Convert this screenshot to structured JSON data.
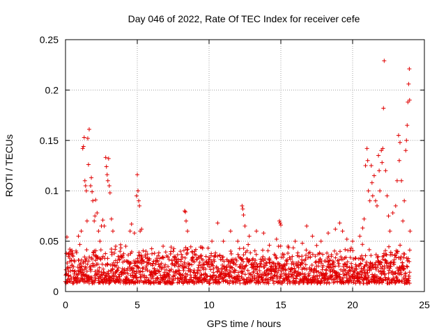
{
  "chart_data": {
    "type": "scatter",
    "title": "Day 046 of 2022, Rate Of TEC Index for receiver cefe",
    "xlabel": "GPS time / hours",
    "ylabel": "ROTI / TECUs",
    "xlim": [
      0,
      25
    ],
    "ylim": [
      0,
      0.25
    ],
    "xticks": [
      0,
      5,
      10,
      15,
      20,
      25
    ],
    "xtick_labels": [
      "0",
      "5",
      "10",
      "15",
      "20",
      "25"
    ],
    "yticks": [
      0,
      0.05,
      0.1,
      0.15,
      0.2,
      0.25
    ],
    "ytick_labels": [
      "0",
      "0.05",
      "0.1",
      "0.15",
      "0.2",
      "0.25"
    ],
    "grid": true,
    "marker": "+",
    "series_color": "#e00000",
    "series": [
      {
        "name": "ROTI",
        "points": [
          [
            0.1,
            0.054
          ],
          [
            0.2,
            0.035
          ],
          [
            0.3,
            0.042
          ],
          [
            0.5,
            0.038
          ],
          [
            0.6,
            0.031
          ],
          [
            0.9,
            0.055
          ],
          [
            1.1,
            0.06
          ],
          [
            1.2,
            0.142
          ],
          [
            1.25,
            0.144
          ],
          [
            1.3,
            0.153
          ],
          [
            1.35,
            0.11
          ],
          [
            1.4,
            0.105
          ],
          [
            1.45,
            0.1
          ],
          [
            1.5,
            0.07
          ],
          [
            1.55,
            0.152
          ],
          [
            1.6,
            0.126
          ],
          [
            1.65,
            0.161
          ],
          [
            1.75,
            0.105
          ],
          [
            1.8,
            0.113
          ],
          [
            1.85,
            0.099
          ],
          [
            1.9,
            0.09
          ],
          [
            2.0,
            0.07
          ],
          [
            2.05,
            0.075
          ],
          [
            2.1,
            0.091
          ],
          [
            2.2,
            0.078
          ],
          [
            2.3,
            0.06
          ],
          [
            2.4,
            0.05
          ],
          [
            2.5,
            0.065
          ],
          [
            2.6,
            0.071
          ],
          [
            2.7,
            0.065
          ],
          [
            2.8,
            0.133
          ],
          [
            2.85,
            0.124
          ],
          [
            2.9,
            0.116
          ],
          [
            2.95,
            0.11
          ],
          [
            3.0,
            0.132
          ],
          [
            3.05,
            0.105
          ],
          [
            3.1,
            0.098
          ],
          [
            3.2,
            0.072
          ],
          [
            3.3,
            0.06
          ],
          [
            3.5,
            0.045
          ],
          [
            3.8,
            0.04
          ],
          [
            4.2,
            0.045
          ],
          [
            4.5,
            0.06
          ],
          [
            4.6,
            0.067
          ],
          [
            4.8,
            0.058
          ],
          [
            4.95,
            0.095
          ],
          [
            5.0,
            0.116
          ],
          [
            5.05,
            0.1
          ],
          [
            5.1,
            0.09
          ],
          [
            5.15,
            0.085
          ],
          [
            5.2,
            0.06
          ],
          [
            5.3,
            0.062
          ],
          [
            5.6,
            0.04
          ],
          [
            6.2,
            0.038
          ],
          [
            6.8,
            0.045
          ],
          [
            7.5,
            0.04
          ],
          [
            8.0,
            0.04
          ],
          [
            8.3,
            0.08
          ],
          [
            8.35,
            0.079
          ],
          [
            8.4,
            0.07
          ],
          [
            8.5,
            0.06
          ],
          [
            9.0,
            0.04
          ],
          [
            9.5,
            0.044
          ],
          [
            10.2,
            0.05
          ],
          [
            10.6,
            0.068
          ],
          [
            11.0,
            0.05
          ],
          [
            11.5,
            0.06
          ],
          [
            12.0,
            0.05
          ],
          [
            12.3,
            0.085
          ],
          [
            12.35,
            0.082
          ],
          [
            12.4,
            0.076
          ],
          [
            12.5,
            0.065
          ],
          [
            12.8,
            0.055
          ],
          [
            13.3,
            0.06
          ],
          [
            13.8,
            0.058
          ],
          [
            14.2,
            0.046
          ],
          [
            14.7,
            0.052
          ],
          [
            14.9,
            0.07
          ],
          [
            14.95,
            0.068
          ],
          [
            15.0,
            0.066
          ],
          [
            15.5,
            0.045
          ],
          [
            16.0,
            0.05
          ],
          [
            16.5,
            0.048
          ],
          [
            16.8,
            0.065
          ],
          [
            17.2,
            0.055
          ],
          [
            17.8,
            0.05
          ],
          [
            18.3,
            0.058
          ],
          [
            18.8,
            0.062
          ],
          [
            19.1,
            0.068
          ],
          [
            19.3,
            0.06
          ],
          [
            19.6,
            0.052
          ],
          [
            20.0,
            0.05
          ],
          [
            20.5,
            0.055
          ],
          [
            20.7,
            0.063
          ],
          [
            20.8,
            0.072
          ],
          [
            20.9,
            0.125
          ],
          [
            21.0,
            0.142
          ],
          [
            21.05,
            0.13
          ],
          [
            21.1,
            0.1
          ],
          [
            21.2,
            0.09
          ],
          [
            21.3,
            0.125
          ],
          [
            21.35,
            0.108
          ],
          [
            21.4,
            0.095
          ],
          [
            21.5,
            0.115
          ],
          [
            21.6,
            0.09
          ],
          [
            21.7,
            0.085
          ],
          [
            21.8,
            0.135
          ],
          [
            21.85,
            0.12
          ],
          [
            21.9,
            0.1
          ],
          [
            22.0,
            0.14
          ],
          [
            22.05,
            0.128
          ],
          [
            22.1,
            0.142
          ],
          [
            22.15,
            0.182
          ],
          [
            22.2,
            0.229
          ],
          [
            22.3,
            0.12
          ],
          [
            22.4,
            0.095
          ],
          [
            22.5,
            0.075
          ],
          [
            22.6,
            0.06
          ],
          [
            22.8,
            0.078
          ],
          [
            23.0,
            0.085
          ],
          [
            23.1,
            0.11
          ],
          [
            23.2,
            0.155
          ],
          [
            23.25,
            0.13
          ],
          [
            23.3,
            0.148
          ],
          [
            23.4,
            0.11
          ],
          [
            23.5,
            0.07
          ],
          [
            23.6,
            0.09
          ],
          [
            23.7,
            0.14
          ],
          [
            23.75,
            0.15
          ],
          [
            23.8,
            0.165
          ],
          [
            23.85,
            0.188
          ],
          [
            23.9,
            0.206
          ],
          [
            23.95,
            0.221
          ],
          [
            23.97,
            0.19
          ],
          [
            24.0,
            0.06
          ]
        ]
      }
    ],
    "baseline_band": {
      "min": 0.008,
      "max": 0.048,
      "x_start": 0.0,
      "x_end": 24.0
    }
  }
}
